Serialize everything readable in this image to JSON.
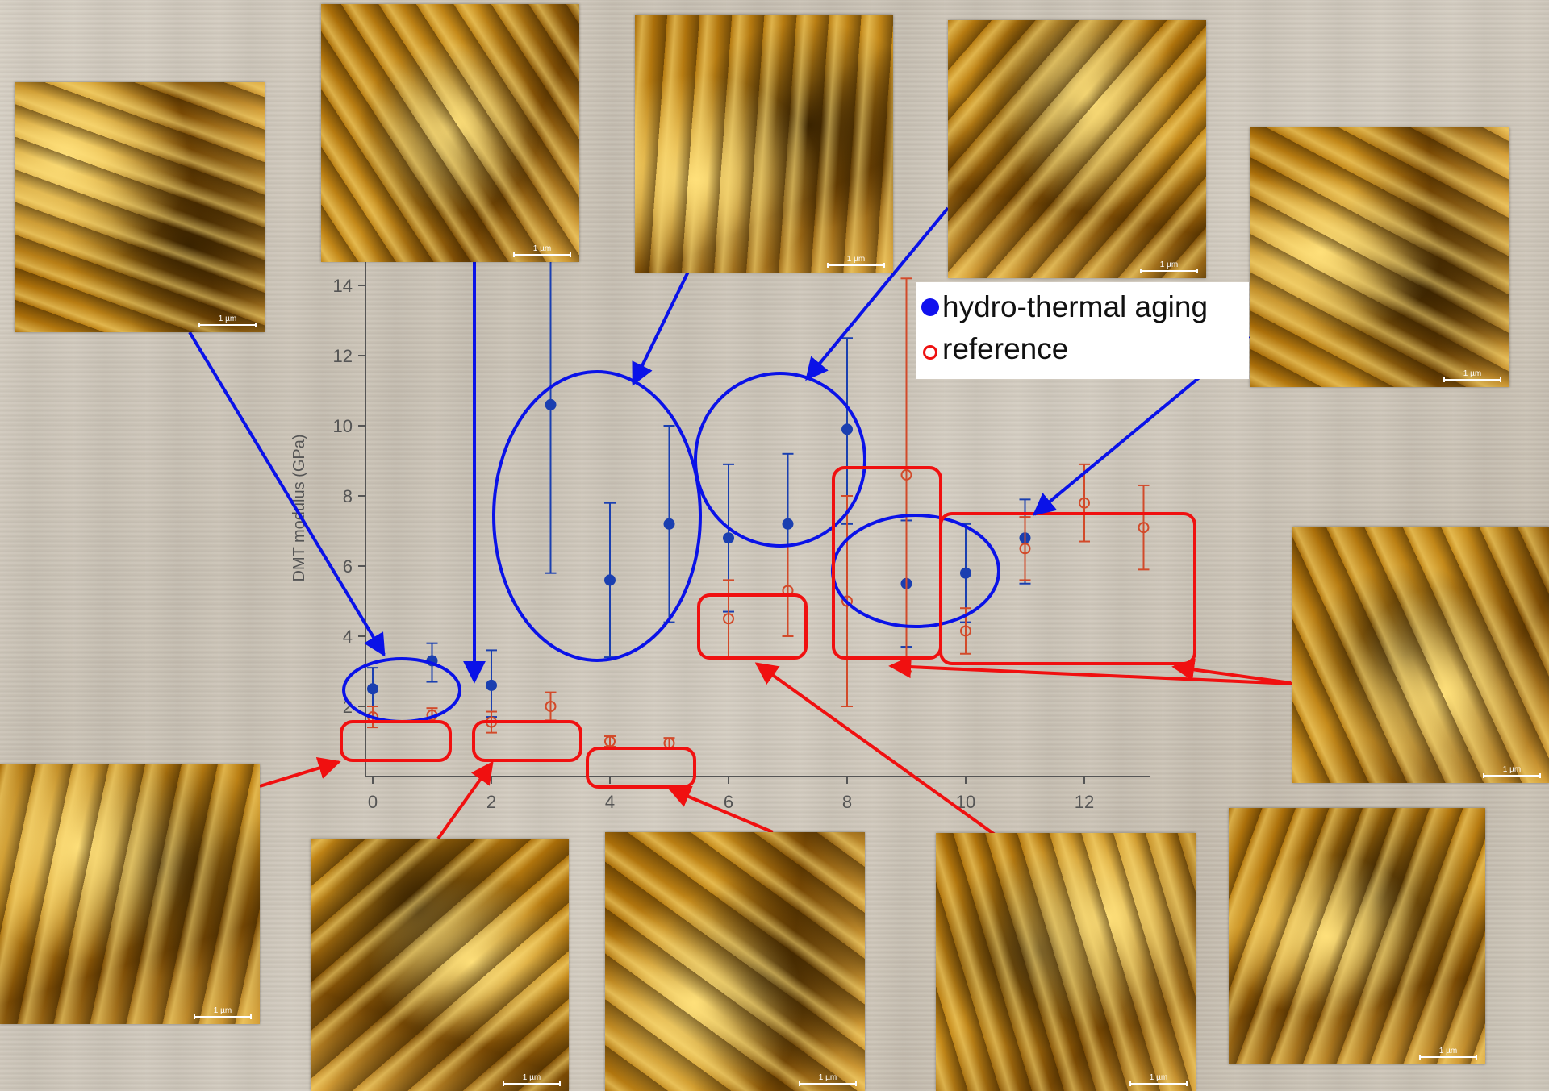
{
  "colors": {
    "hydro": "#1a3fb0",
    "reference": "#d24a2a",
    "annot_blue": "#0a12e8",
    "annot_red": "#f01010",
    "axis": "#555555",
    "afm_dark": "#3a2300",
    "afm_mid": "#a86c08",
    "afm_light": "#ffe07a"
  },
  "legend": {
    "hydro_label": "hydro-thermal aging",
    "reference_label": "reference",
    "hydro_marker": "filled-circle",
    "reference_marker": "open-circle"
  },
  "afm_scale_label": "1 µm",
  "chart_data": {
    "type": "scatter",
    "title": "",
    "xlabel": "",
    "ylabel": "DMT modulus (GPa)",
    "xlim": [
      -0.3,
      13
    ],
    "ylim": [
      0,
      15.5
    ],
    "xticks": [
      0,
      2,
      4,
      6,
      8,
      10,
      12
    ],
    "yticks": [
      2,
      4,
      6,
      8,
      10,
      12,
      14
    ],
    "grid": false,
    "legend_position": "upper-right",
    "series": [
      {
        "name": "hydro-thermal aging",
        "marker": "filled-circle",
        "points": [
          {
            "x": 0,
            "y": 2.5,
            "lo": 2.0,
            "hi": 3.1
          },
          {
            "x": 1,
            "y": 3.3,
            "lo": 2.7,
            "hi": 3.8
          },
          {
            "x": 2,
            "y": 2.6,
            "lo": 1.7,
            "hi": 3.6
          },
          {
            "x": 3,
            "y": 10.6,
            "lo": 5.8,
            "hi": 15.3
          },
          {
            "x": 4,
            "y": 5.6,
            "lo": 3.4,
            "hi": 7.8
          },
          {
            "x": 5,
            "y": 7.2,
            "lo": 4.4,
            "hi": 10.0
          },
          {
            "x": 6,
            "y": 6.8,
            "lo": 4.7,
            "hi": 8.9
          },
          {
            "x": 7,
            "y": 7.2,
            "lo": 5.2,
            "hi": 9.2
          },
          {
            "x": 8,
            "y": 9.9,
            "lo": 7.2,
            "hi": 12.5
          },
          {
            "x": 9,
            "y": 5.5,
            "lo": 3.7,
            "hi": 7.3
          },
          {
            "x": 10,
            "y": 5.8,
            "lo": 4.4,
            "hi": 7.2
          },
          {
            "x": 11,
            "y": 6.8,
            "lo": 5.5,
            "hi": 7.9
          }
        ]
      },
      {
        "name": "reference",
        "marker": "open-circle",
        "points": [
          {
            "x": 0,
            "y": 1.7,
            "lo": 1.4,
            "hi": 2.0
          },
          {
            "x": 1,
            "y": 1.75,
            "lo": 1.55,
            "hi": 1.95
          },
          {
            "x": 2,
            "y": 1.55,
            "lo": 1.25,
            "hi": 1.85
          },
          {
            "x": 3,
            "y": 2.0,
            "lo": 1.6,
            "hi": 2.4
          },
          {
            "x": 4,
            "y": 1.0,
            "lo": 0.85,
            "hi": 1.15
          },
          {
            "x": 5,
            "y": 0.95,
            "lo": 0.8,
            "hi": 1.1
          },
          {
            "x": 6,
            "y": 4.5,
            "lo": 3.4,
            "hi": 5.6
          },
          {
            "x": 7,
            "y": 5.3,
            "lo": 4.0,
            "hi": 6.6
          },
          {
            "x": 8,
            "y": 5.0,
            "lo": 2.0,
            "hi": 8.0
          },
          {
            "x": 9,
            "y": 8.6,
            "lo": 3.0,
            "hi": 14.2
          },
          {
            "x": 10,
            "y": 4.15,
            "lo": 3.5,
            "hi": 4.8
          },
          {
            "x": 11,
            "y": 6.5,
            "lo": 5.6,
            "hi": 7.4
          },
          {
            "x": 12,
            "y": 7.8,
            "lo": 6.7,
            "hi": 8.9
          },
          {
            "x": 13,
            "y": 7.1,
            "lo": 5.9,
            "hi": 8.3
          }
        ]
      }
    ]
  }
}
